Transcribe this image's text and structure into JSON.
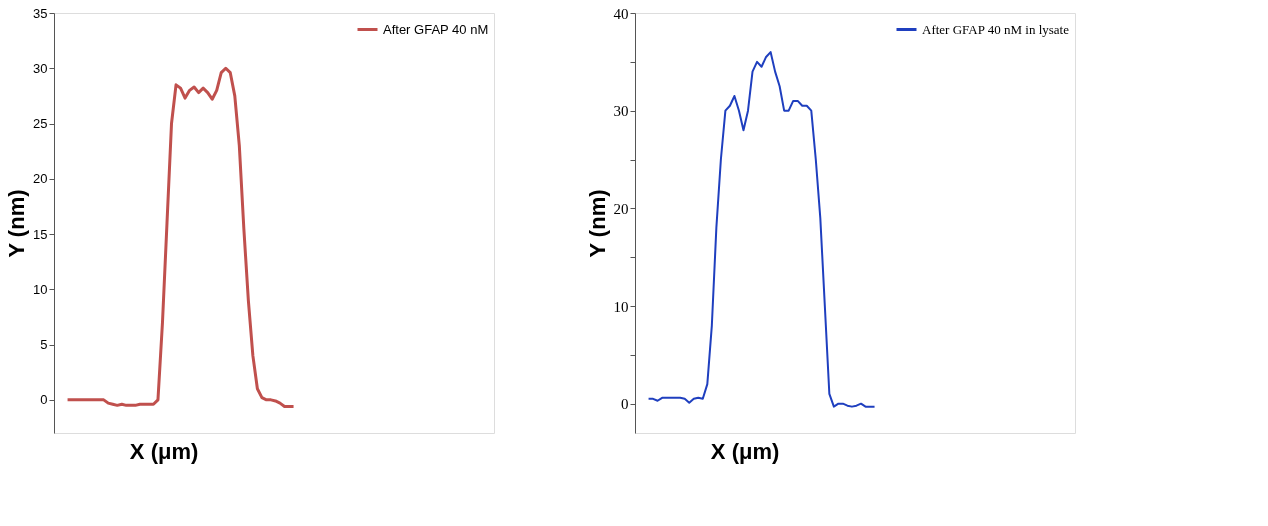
{
  "chart_data": [
    {
      "type": "line",
      "xlabel": "X (μm)",
      "ylabel": "Y (nm)",
      "categories": [
        null,
        null,
        null,
        null,
        null,
        null,
        null,
        null,
        null,
        null,
        null,
        null,
        null,
        null,
        null,
        null,
        null,
        null,
        null,
        null,
        null,
        null,
        null,
        null,
        null,
        null,
        null,
        null,
        null,
        null,
        null,
        null,
        null,
        null,
        null,
        null,
        null,
        null,
        null,
        null,
        null,
        null,
        null,
        null,
        null,
        null,
        null,
        null,
        null,
        null,
        null
      ],
      "series": [
        {
          "name": "After GFAP 40 nM",
          "color": "#c0504d",
          "values": [
            0,
            0,
            0,
            0,
            0,
            0,
            0,
            0,
            0,
            -0.3,
            -0.4,
            -0.5,
            -0.4,
            -0.5,
            -0.5,
            -0.5,
            -0.4,
            -0.4,
            -0.4,
            -0.4,
            0,
            7,
            16,
            25,
            28.5,
            28.2,
            27.3,
            28,
            28.3,
            27.8,
            28.2,
            27.8,
            27.2,
            28,
            29.6,
            30,
            29.6,
            27.5,
            23,
            15.5,
            9,
            4,
            1,
            0.2,
            0,
            0,
            -0.1,
            -0.3,
            -0.6,
            -0.6,
            -0.6
          ]
        }
      ],
      "ylim": [
        -3,
        35
      ],
      "yticks": [
        0,
        5,
        10,
        15,
        20,
        25,
        30,
        35
      ],
      "tick_labels": "y",
      "legend": "top right",
      "grid": false
    },
    {
      "type": "line",
      "xlabel": "X (μm)",
      "ylabel": "Y (nm)",
      "categories": [
        null,
        null,
        null,
        null,
        null,
        null,
        null,
        null,
        null,
        null,
        null,
        null,
        null,
        null,
        null,
        null,
        null,
        null,
        null,
        null,
        null,
        null,
        null,
        null,
        null,
        null,
        null,
        null,
        null,
        null,
        null,
        null,
        null,
        null,
        null,
        null,
        null,
        null,
        null,
        null,
        null,
        null,
        null,
        null,
        null,
        null,
        null,
        null,
        null,
        null,
        null
      ],
      "series": [
        {
          "name": "After GFAP 40 nM in lysate",
          "color": "#1f3fbf",
          "values": [
            0.5,
            0.5,
            0.3,
            0.6,
            0.6,
            0.6,
            0.6,
            0.6,
            0.5,
            0.1,
            0.5,
            0.6,
            0.5,
            2,
            8,
            18,
            25,
            30,
            30.5,
            31.5,
            30,
            28,
            30,
            34,
            35,
            34.5,
            35.5,
            36,
            34,
            32.5,
            30,
            30,
            31,
            31,
            30.5,
            30.5,
            30,
            25,
            19,
            10,
            1,
            -0.3,
            0,
            0,
            -0.2,
            -0.3,
            -0.2,
            0,
            -0.3,
            -0.3,
            -0.3
          ]
        }
      ],
      "ylim": [
        -3,
        40
      ],
      "yticks": [
        0,
        {
          "value": 5,
          "label": null
        },
        10,
        {
          "value": 15,
          "label": null
        },
        20,
        {
          "value": 25,
          "label": null
        },
        30,
        {
          "value": 35,
          "label": null
        },
        40
      ],
      "tick_labels": "y",
      "legend": "top right",
      "grid": false
    }
  ]
}
